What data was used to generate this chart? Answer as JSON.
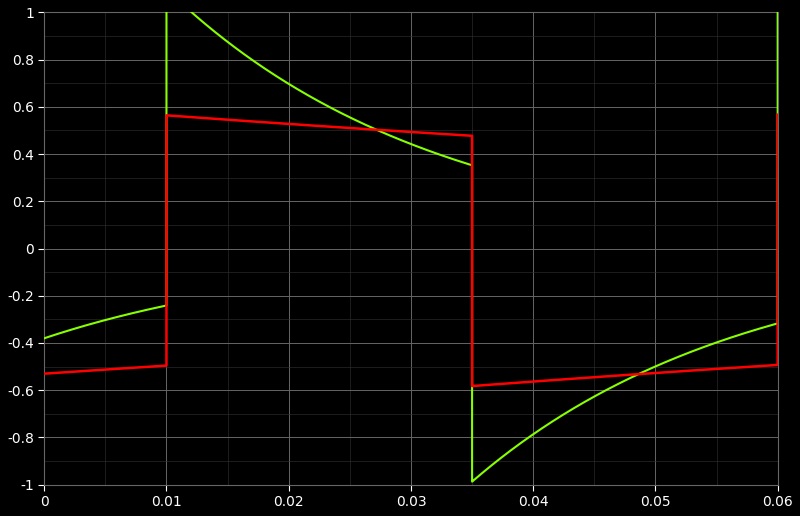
{
  "background_color": "#000000",
  "grid_color_major": "#666666",
  "grid_color_minor": "#333333",
  "xlim": [
    0,
    0.06
  ],
  "ylim": [
    -1,
    1
  ],
  "xticks": [
    0,
    0.01,
    0.02,
    0.03,
    0.04,
    0.05,
    0.06
  ],
  "yticks": [
    -1,
    -0.8,
    -0.6,
    -0.4,
    -0.2,
    0,
    0.2,
    0.4,
    0.6,
    0.8,
    1
  ],
  "tick_color": "#ffffff",
  "tick_fontsize": 10,
  "green_color": "#88ff00",
  "red_color": "#ff0000",
  "linewidth_green": 1.5,
  "linewidth_red": 1.8,
  "tau_green": 0.022,
  "tau_red": 0.15,
  "t1": 0.01,
  "t2": 0.035,
  "t3": 0.06,
  "green_ic": -0.38,
  "green_sq_amp": 0.67,
  "red_sq_amp": 0.53,
  "red_ic": -0.53
}
